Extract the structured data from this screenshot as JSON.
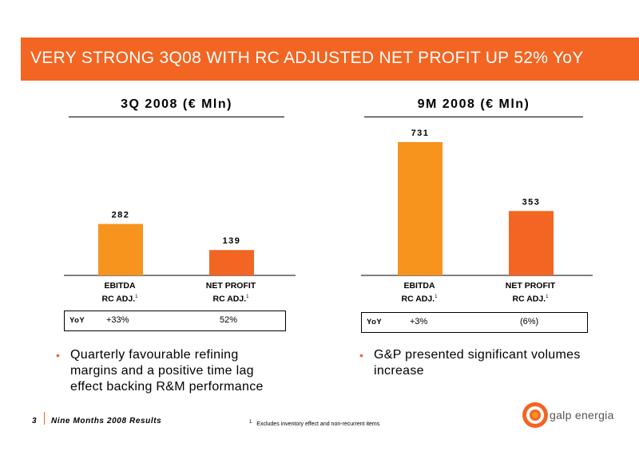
{
  "header": {
    "title": "VERY STRONG 3Q08 WITH RC ADJUSTED NET PROFIT UP 52% YoY"
  },
  "colors": {
    "accent": "#f26522",
    "bar_ebitda": "#f7941d",
    "bar_net": "#f26522"
  },
  "chart_data": [
    {
      "type": "bar",
      "title": "3Q 2008 (€ Mln)",
      "categories": [
        "EBITDA RC ADJ.",
        "NET PROFIT RC ADJ."
      ],
      "category_lines": [
        [
          "EBITDA",
          "RC ADJ."
        ],
        [
          "NET PROFIT",
          "RC ADJ."
        ]
      ],
      "values": [
        282,
        139
      ],
      "value_labels": [
        "282",
        "139"
      ],
      "ylim": [
        0,
        731
      ],
      "yoy_label": "YoY",
      "yoy": [
        "+33%",
        "52%"
      ]
    },
    {
      "type": "bar",
      "title": "9M 2008 (€ Mln)",
      "categories": [
        "EBITDA RC ADJ.",
        "NET PROFIT RC ADJ."
      ],
      "category_lines": [
        [
          "EBITDA",
          "RC ADJ."
        ],
        [
          "NET PROFIT",
          "RC ADJ."
        ]
      ],
      "values": [
        731,
        353
      ],
      "value_labels": [
        "731",
        "353"
      ],
      "ylim": [
        0,
        731
      ],
      "yoy_label": "YoY",
      "yoy": [
        "+3%",
        "(6%)"
      ]
    }
  ],
  "footnote_marker": "1",
  "bullets": {
    "left": "Quarterly favourable refining margins and a positive time lag effect backing R&M performance",
    "right": "G&P presented significant volumes increase",
    "marker": "•"
  },
  "footer": {
    "page": "3",
    "text": "Nine Months 2008 Results",
    "footnote": "Excludes inventory effect and non-recurrent items",
    "footnote_marker": "1"
  },
  "logo": {
    "text": "galp energia",
    "icon": "galp-logo-icon"
  }
}
